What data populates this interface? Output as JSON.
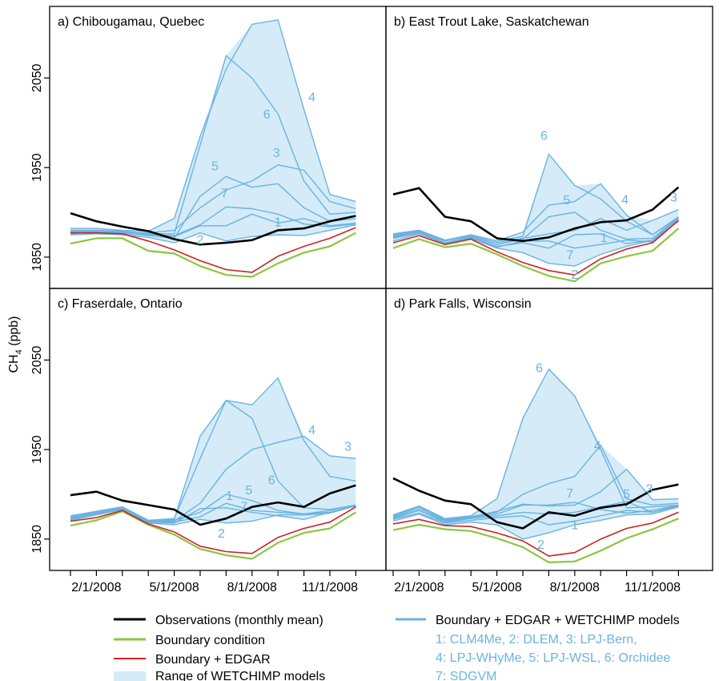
{
  "figure": {
    "ylabel_main": "CH",
    "ylabel_sub": "4",
    "ylabel_unit": " (ppb)"
  },
  "colors": {
    "observations": "#000000",
    "boundary": "#8cc63f",
    "boundary_edgar": "#cc2222",
    "models": "#6bb3e0",
    "range_fill": "#d5ebf8",
    "model_labels": "#6bb3e0"
  },
  "legend": {
    "observations": "Observations (monthly mean)",
    "boundary": "Boundary condition",
    "boundary_edgar": "Boundary + EDGAR",
    "range": "Range of WETCHIMP models",
    "models": "Boundary + EDGAR + WETCHIMP models",
    "model_key_lines": [
      "1: CLM4Me, 2: DLEM, 3: LPJ-Bern,",
      "4: LPJ-WHyMe, 5: LPJ-WSL, 6: Orchidee",
      "7: SDGVM"
    ]
  },
  "chart_data": [
    {
      "type": "line",
      "title": "a) Chibougamau, Quebec",
      "x": [
        "2008-01",
        "2008-02",
        "2008-03",
        "2008-04",
        "2008-05",
        "2008-06",
        "2008-07",
        "2008-08",
        "2008-09",
        "2008-10",
        "2008-11",
        "2008-12"
      ],
      "xticks": [
        "2/1/2008",
        "5/1/2008",
        "8/1/2008",
        "11/1/2008"
      ],
      "yticks": [
        1850,
        1950,
        2050
      ],
      "ylim": [
        1815,
        2130
      ],
      "observations": [
        1899,
        1890,
        1884,
        1879,
        1870,
        1864,
        1866,
        1869,
        1880,
        1882,
        1890,
        1896
      ],
      "boundary": [
        1865,
        1871,
        1871,
        1857,
        1854,
        1840,
        1830,
        1828,
        1843,
        1855,
        1862,
        1877
      ],
      "boundary_edgar": [
        1877,
        1877,
        1876,
        1868,
        1858,
        1846,
        1836,
        1833,
        1851,
        1862,
        1871,
        1883
      ],
      "models": [
        {
          "name": "1",
          "values": [
            1880,
            1880,
            1879,
            1876,
            1873,
            1885,
            1885,
            1898,
            1888,
            1893,
            1885,
            1888
          ]
        },
        {
          "name": "2",
          "values": [
            1875,
            1876,
            1875,
            1872,
            1866,
            1877,
            1868,
            1873,
            1875,
            1874,
            1880,
            1886
          ]
        },
        {
          "name": "3",
          "values": [
            1879,
            1880,
            1878,
            1877,
            1880,
            1905,
            1925,
            1935,
            1953,
            1947,
            1912,
            1904
          ]
        },
        {
          "name": "4",
          "values": [
            1882,
            1882,
            1880,
            1879,
            1893,
            1985,
            2060,
            2110,
            2115,
            2015,
            1920,
            1912
          ]
        },
        {
          "name": "5",
          "values": [
            1876,
            1878,
            1877,
            1874,
            1871,
            1918,
            1940,
            1928,
            1932,
            1905,
            1890,
            1893
          ]
        },
        {
          "name": "6",
          "values": [
            1878,
            1879,
            1878,
            1876,
            1876,
            1975,
            2075,
            2050,
            2010,
            1935,
            1898,
            1900
          ]
        },
        {
          "name": "7",
          "values": [
            1877,
            1878,
            1876,
            1875,
            1874,
            1886,
            1906,
            1904,
            1898,
            1887,
            1884,
            1887
          ]
        }
      ]
    },
    {
      "type": "line",
      "title": "b) East Trout Lake, Saskatchewan",
      "x": [
        "2008-01",
        "2008-02",
        "2008-03",
        "2008-04",
        "2008-05",
        "2008-06",
        "2008-07",
        "2008-08",
        "2008-09",
        "2008-10",
        "2008-11",
        "2008-12"
      ],
      "xticks": [
        "2/1/2008",
        "5/1/2008",
        "8/1/2008",
        "11/1/2008"
      ],
      "yticks": [
        1850,
        1950,
        2050
      ],
      "ylim": [
        1815,
        2130
      ],
      "observations": [
        1920,
        1927,
        1895,
        1890,
        1871,
        1868,
        1872,
        1882,
        1889,
        1891,
        1903,
        1928
      ],
      "boundary": [
        1860,
        1870,
        1861,
        1865,
        1853,
        1840,
        1829,
        1823,
        1843,
        1851,
        1857,
        1882
      ],
      "boundary_edgar": [
        1866,
        1874,
        1864,
        1870,
        1856,
        1844,
        1835,
        1830,
        1848,
        1859,
        1866,
        1891
      ],
      "models": [
        {
          "name": "1",
          "values": [
            1872,
            1878,
            1866,
            1872,
            1862,
            1866,
            1860,
            1875,
            1876,
            1865,
            1869,
            1893
          ]
        },
        {
          "name": "2",
          "values": [
            1868,
            1876,
            1865,
            1871,
            1860,
            1855,
            1843,
            1840,
            1853,
            1862,
            1869,
            1890
          ]
        },
        {
          "name": "3",
          "values": [
            1874,
            1879,
            1868,
            1874,
            1866,
            1871,
            1876,
            1880,
            1893,
            1880,
            1891,
            1903
          ]
        },
        {
          "name": "4",
          "values": [
            1875,
            1880,
            1869,
            1875,
            1868,
            1878,
            1908,
            1912,
            1932,
            1897,
            1875,
            1895
          ]
        },
        {
          "name": "5",
          "values": [
            1873,
            1879,
            1866,
            1873,
            1864,
            1870,
            1895,
            1900,
            1880,
            1870,
            1871,
            1894
          ]
        },
        {
          "name": "6",
          "values": [
            1876,
            1880,
            1868,
            1875,
            1868,
            1873,
            1965,
            1930,
            1915,
            1890,
            1875,
            1894
          ]
        },
        {
          "name": "7",
          "values": [
            1871,
            1877,
            1866,
            1872,
            1861,
            1868,
            1868,
            1860,
            1864,
            1869,
            1867,
            1891
          ]
        }
      ]
    },
    {
      "type": "line",
      "title": "c) Fraserdale, Ontario",
      "x": [
        "2008-01",
        "2008-02",
        "2008-03",
        "2008-04",
        "2008-05",
        "2008-06",
        "2008-07",
        "2008-08",
        "2008-09",
        "2008-10",
        "2008-11",
        "2008-12"
      ],
      "xticks": [
        "2/1/2008",
        "5/1/2008",
        "8/1/2008",
        "11/1/2008"
      ],
      "yticks": [
        1850,
        1950,
        2050
      ],
      "ylim": [
        1815,
        2130
      ],
      "observations": [
        1899,
        1903,
        1893,
        1888,
        1883,
        1866,
        1873,
        1886,
        1891,
        1886,
        1901,
        1910
      ],
      "boundary": [
        1865,
        1871,
        1881,
        1866,
        1855,
        1839,
        1832,
        1828,
        1846,
        1857,
        1862,
        1880
      ],
      "boundary_edgar": [
        1870,
        1874,
        1882,
        1867,
        1858,
        1842,
        1836,
        1834,
        1852,
        1862,
        1869,
        1886
      ],
      "models": [
        {
          "name": "1",
          "values": [
            1872,
            1878,
            1884,
            1869,
            1869,
            1875,
            1890,
            1882,
            1880,
            1878,
            1880,
            1887
          ]
        },
        {
          "name": "2",
          "values": [
            1871,
            1877,
            1883,
            1868,
            1866,
            1872,
            1868,
            1870,
            1877,
            1877,
            1879,
            1887
          ]
        },
        {
          "name": "3",
          "values": [
            1874,
            1880,
            1885,
            1870,
            1870,
            1890,
            1928,
            1950,
            1958,
            1965,
            1943,
            1940
          ]
        },
        {
          "name": "4",
          "values": [
            1875,
            1881,
            1886,
            1871,
            1872,
            1965,
            2005,
            2000,
            2030,
            1960,
            1920,
            1915
          ]
        },
        {
          "name": "5",
          "values": [
            1873,
            1879,
            1884,
            1870,
            1871,
            1880,
            1900,
            1893,
            1882,
            1878,
            1882,
            1888
          ]
        },
        {
          "name": "6",
          "values": [
            1876,
            1881,
            1886,
            1871,
            1873,
            1940,
            2005,
            1985,
            1915,
            1885,
            1883,
            1888
          ]
        },
        {
          "name": "7",
          "values": [
            1872,
            1878,
            1884,
            1869,
            1868,
            1884,
            1885,
            1880,
            1876,
            1872,
            1880,
            1887
          ]
        }
      ]
    },
    {
      "type": "line",
      "title": "d) Park Falls, Wisconsin",
      "x": [
        "2008-01",
        "2008-02",
        "2008-03",
        "2008-04",
        "2008-05",
        "2008-06",
        "2008-07",
        "2008-08",
        "2008-09",
        "2008-10",
        "2008-11",
        "2008-12"
      ],
      "xticks": [
        "2/1/2008",
        "5/1/2008",
        "8/1/2008",
        "11/1/2008"
      ],
      "yticks": [
        1850,
        1950,
        2050
      ],
      "ylim": [
        1815,
        2130
      ],
      "observations": [
        1918,
        1904,
        1893,
        1889,
        1869,
        1862,
        1880,
        1876,
        1885,
        1889,
        1905,
        1911
      ],
      "boundary": [
        1860,
        1866,
        1861,
        1859,
        1851,
        1841,
        1824,
        1825,
        1837,
        1851,
        1861,
        1873
      ],
      "boundary_edgar": [
        1867,
        1872,
        1865,
        1864,
        1857,
        1848,
        1831,
        1835,
        1850,
        1862,
        1868,
        1880
      ],
      "models": [
        {
          "name": "1",
          "values": [
            1872,
            1879,
            1868,
            1871,
            1874,
            1876,
            1866,
            1870,
            1876,
            1882,
            1880,
            1887
          ]
        },
        {
          "name": "2",
          "values": [
            1870,
            1878,
            1866,
            1869,
            1866,
            1850,
            1857,
            1866,
            1871,
            1877,
            1878,
            1886
          ]
        },
        {
          "name": "3",
          "values": [
            1875,
            1884,
            1871,
            1875,
            1881,
            1889,
            1887,
            1888,
            1903,
            1928,
            1894,
            1895
          ]
        },
        {
          "name": "4",
          "values": [
            1876,
            1886,
            1872,
            1875,
            1880,
            1900,
            1912,
            1920,
            1955,
            1895,
            1888,
            1890
          ]
        },
        {
          "name": "5",
          "values": [
            1873,
            1882,
            1869,
            1873,
            1876,
            1880,
            1878,
            1880,
            1886,
            1892,
            1880,
            1888
          ]
        },
        {
          "name": "6",
          "values": [
            1877,
            1887,
            1873,
            1876,
            1895,
            1985,
            2040,
            2010,
            1950,
            1885,
            1886,
            1888
          ]
        },
        {
          "name": "7",
          "values": [
            1874,
            1882,
            1870,
            1874,
            1878,
            1888,
            1888,
            1891,
            1883,
            1879,
            1882,
            1888
          ]
        }
      ]
    }
  ]
}
